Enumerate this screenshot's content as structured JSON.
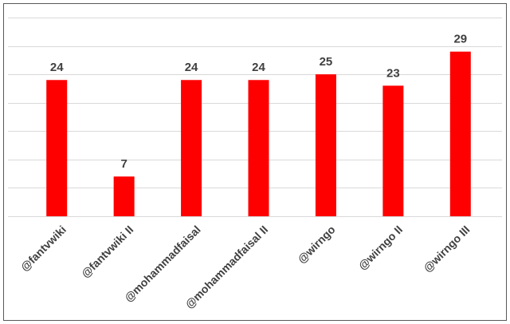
{
  "chart_data": {
    "type": "bar",
    "categories": [
      "@fantvwiki",
      "@fantvwiki II",
      "@mohammadfaisal",
      "@mohammadfaisal II",
      "@wirngo",
      "@wirngo II",
      "@wirngo III"
    ],
    "values": [
      24,
      7,
      24,
      24,
      25,
      23,
      29
    ],
    "color": "#ff0000",
    "ylim": [
      0,
      35
    ],
    "yticks": [
      0,
      5,
      10,
      15,
      20,
      25,
      30,
      35
    ],
    "grid": true
  }
}
